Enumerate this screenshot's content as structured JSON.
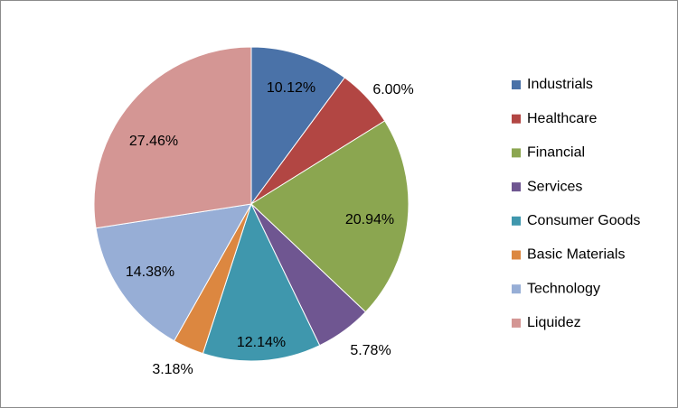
{
  "chart_data": {
    "type": "pie",
    "title": "",
    "legend_position": "right",
    "slices": [
      {
        "name": "Industrials",
        "value": 10.12,
        "label": "10.12%",
        "color": "#4a72a8"
      },
      {
        "name": "Healthcare",
        "value": 6.0,
        "label": "6.00%",
        "color": "#b24643"
      },
      {
        "name": "Financial",
        "value": 20.94,
        "label": "20.94%",
        "color": "#8ba650"
      },
      {
        "name": "Services",
        "value": 5.78,
        "label": "5.78%",
        "color": "#6f5691"
      },
      {
        "name": "Consumer Goods",
        "value": 12.14,
        "label": "12.14%",
        "color": "#3f97ad"
      },
      {
        "name": "Basic Materials",
        "value": 3.18,
        "label": "3.18%",
        "color": "#dc8740"
      },
      {
        "name": "Technology",
        "value": 14.38,
        "label": "14.38%",
        "color": "#97aed6"
      },
      {
        "name": "Liquidez",
        "value": 27.46,
        "label": "27.46%",
        "color": "#d49694"
      }
    ]
  }
}
